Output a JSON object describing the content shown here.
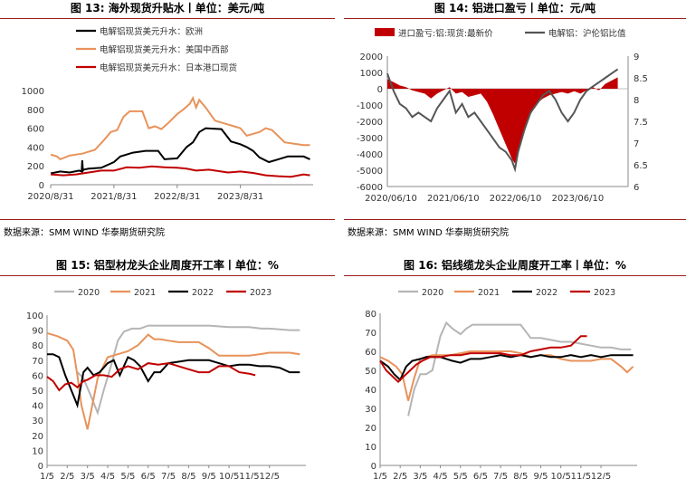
{
  "source_note": "数据来源：SMM WIND 华泰期货研究院",
  "colors": {
    "rule": "#9b1b1b",
    "black": "#000000",
    "orange": "#e8925a",
    "red": "#c00000",
    "gray": "#b5b5b5",
    "dgray": "#555555"
  },
  "chart_data": [
    {
      "id": "fig13",
      "title": "图 13: 海外现货升贴水丨单位：美元/吨",
      "type": "line",
      "x_ticks": [
        "2020/8/31",
        "2021/8/31",
        "2022/8/31",
        "2023/8/31"
      ],
      "y_ticks": [
        "0",
        "200",
        "400",
        "600",
        "800",
        "1000"
      ],
      "ylim": [
        0,
        1000
      ],
      "legend": "top-left",
      "series": [
        {
          "name": "电解铝现货美元升水：欧洲",
          "color": "#000000",
          "x": [
            0,
            0.15,
            0.3,
            0.45,
            0.49,
            0.5,
            0.51,
            0.52,
            0.6,
            0.8,
            1.0,
            1.1,
            1.2,
            1.3,
            1.5,
            1.7,
            1.8,
            2.0,
            2.15,
            2.25,
            2.35,
            2.45,
            2.7,
            2.85,
            3.0,
            3.1,
            3.2,
            3.3,
            3.45,
            3.6,
            3.7,
            3.75,
            4.0,
            4.1
          ],
          "y": [
            120,
            140,
            130,
            150,
            140,
            260,
            150,
            160,
            170,
            180,
            240,
            300,
            320,
            340,
            360,
            360,
            270,
            280,
            400,
            450,
            560,
            600,
            590,
            460,
            430,
            400,
            360,
            290,
            240,
            270,
            290,
            300,
            300,
            270
          ]
        },
        {
          "name": "电解铝现货美元升水：美国中西部",
          "color": "#e8925a",
          "x": [
            0,
            0.1,
            0.15,
            0.3,
            0.5,
            0.7,
            0.85,
            0.95,
            1.05,
            1.15,
            1.25,
            1.35,
            1.45,
            1.55,
            1.65,
            1.75,
            1.85,
            2.0,
            2.1,
            2.2,
            2.25,
            2.3,
            2.35,
            2.45,
            2.6,
            2.8,
            2.9,
            3.0,
            3.1,
            3.3,
            3.4,
            3.5,
            3.7,
            3.9,
            4.0,
            4.1
          ],
          "y": [
            320,
            300,
            270,
            310,
            330,
            370,
            480,
            560,
            580,
            720,
            780,
            780,
            780,
            600,
            620,
            590,
            650,
            750,
            800,
            860,
            920,
            820,
            900,
            820,
            680,
            640,
            620,
            600,
            520,
            560,
            600,
            580,
            450,
            430,
            420,
            420
          ]
        },
        {
          "name": "电解铝现货美元升水：日本港口现货",
          "color": "#c00000",
          "x": [
            0,
            0.2,
            0.4,
            0.6,
            0.8,
            1.0,
            1.2,
            1.4,
            1.6,
            1.8,
            2.0,
            2.15,
            2.3,
            2.5,
            2.6,
            2.8,
            3.0,
            3.2,
            3.4,
            3.6,
            3.8,
            4.0,
            4.1
          ],
          "y": [
            110,
            100,
            110,
            130,
            150,
            150,
            185,
            180,
            195,
            185,
            180,
            170,
            150,
            160,
            150,
            130,
            140,
            125,
            100,
            90,
            85,
            110,
            100
          ]
        }
      ]
    },
    {
      "id": "fig14",
      "title": "图 14: 铝进口盈亏丨单位：元/吨",
      "type": "bar",
      "x_ticks": [
        "2020/06/10",
        "2021/06/10",
        "2022/06/10",
        "2023/06/10"
      ],
      "y_ticks": [
        "-6000",
        "-5000",
        "-4000",
        "-3000",
        "-2000",
        "-1000",
        "0",
        "1000",
        "2000"
      ],
      "y2_ticks": [
        "6",
        "6.5",
        "7",
        "7.5",
        "8",
        "8.5",
        "9"
      ],
      "ylim": [
        -6000,
        2000
      ],
      "y2lim": [
        6,
        9
      ],
      "legend": "top",
      "series": [
        {
          "name": "进口盈亏:铝:现货:最新价",
          "color": "#c00000",
          "axis": "left",
          "x": [
            0,
            0.1,
            0.2,
            0.3,
            0.4,
            0.5,
            0.6,
            0.7,
            0.8,
            0.9,
            1.0,
            1.1,
            1.2,
            1.3,
            1.4,
            1.5,
            1.6,
            1.7,
            1.8,
            1.9,
            2.0,
            2.05,
            2.1,
            2.2,
            2.3,
            2.4,
            2.5,
            2.6,
            2.7,
            2.8,
            2.9,
            3.0,
            3.1,
            3.2,
            3.3,
            3.4,
            3.5,
            3.6,
            3.7
          ],
          "y": [
            600,
            400,
            200,
            100,
            -100,
            -200,
            -300,
            -600,
            -300,
            -100,
            100,
            -300,
            -200,
            -500,
            -400,
            -300,
            -800,
            -1600,
            -2500,
            -3400,
            -4300,
            -4600,
            -3800,
            -2600,
            -1600,
            -900,
            -600,
            -400,
            -300,
            -200,
            -300,
            -150,
            -300,
            -100,
            100,
            -100,
            300,
            500,
            700
          ]
        },
        {
          "name": "电解铝：沪伦铝比值",
          "color": "#555555",
          "axis": "right",
          "x": [
            0,
            0.1,
            0.2,
            0.3,
            0.4,
            0.5,
            0.6,
            0.7,
            0.8,
            0.9,
            1.0,
            1.1,
            1.2,
            1.3,
            1.4,
            1.5,
            1.6,
            1.7,
            1.8,
            1.9,
            2.0,
            2.05,
            2.1,
            2.2,
            2.3,
            2.4,
            2.5,
            2.6,
            2.7,
            2.8,
            2.9,
            3.0,
            3.1,
            3.2,
            3.3,
            3.4,
            3.5,
            3.6,
            3.7
          ],
          "y": [
            8.6,
            8.2,
            7.9,
            7.8,
            7.6,
            7.7,
            7.6,
            7.5,
            7.8,
            8.0,
            8.2,
            7.7,
            7.9,
            7.6,
            7.7,
            7.5,
            7.3,
            7.1,
            6.9,
            6.8,
            6.6,
            6.4,
            6.8,
            7.3,
            7.7,
            7.9,
            8.1,
            8.2,
            8.0,
            7.7,
            7.5,
            7.7,
            8.0,
            8.2,
            8.3,
            8.4,
            8.5,
            8.6,
            8.7
          ]
        }
      ]
    },
    {
      "id": "fig15",
      "title": "图 15: 铝型材龙头企业周度开工率丨单位：%",
      "type": "line",
      "x_ticks": [
        "1/5",
        "2/5",
        "3/5",
        "4/5",
        "5/5",
        "6/5",
        "7/5",
        "8/5",
        "9/5",
        "10/5",
        "11/5",
        "12/5"
      ],
      "y_ticks": [
        "0",
        "10",
        "20",
        "30",
        "40",
        "50",
        "60",
        "70",
        "80",
        "90",
        "100"
      ],
      "ylim": [
        0,
        100
      ],
      "legend": "top",
      "series": [
        {
          "name": "2020",
          "color": "#b5b5b5",
          "x": [
            1.5,
            1.8,
            2.2,
            2.5,
            2.8,
            3.2,
            3.5,
            3.8,
            4.2,
            4.6,
            5.0,
            6.0,
            7.0,
            8.0,
            9.0,
            10.0,
            10.6,
            11.0,
            12.0,
            12.5
          ],
          "y": [
            62,
            58,
            45,
            35,
            50,
            68,
            83,
            89,
            91,
            91,
            93,
            93,
            93,
            93,
            92,
            92,
            91,
            91,
            90,
            90
          ]
        },
        {
          "name": "2021",
          "color": "#e8925a",
          "x": [
            0.0,
            0.5,
            1.0,
            1.3,
            1.5,
            1.7,
            2.0,
            2.5,
            3.0,
            3.5,
            4.0,
            4.5,
            5.0,
            5.3,
            5.6,
            6.0,
            6.5,
            7.0,
            7.5,
            8.0,
            8.5,
            9.0,
            9.5,
            10.0,
            10.5,
            11.0,
            11.5,
            12.0,
            12.5
          ],
          "y": [
            88,
            86,
            83,
            77,
            60,
            40,
            24,
            58,
            72,
            74,
            76,
            80,
            87,
            84,
            84,
            83,
            82,
            82,
            82,
            78,
            73,
            73,
            73,
            73,
            74,
            75,
            75,
            75,
            74
          ]
        },
        {
          "name": "2022",
          "color": "#000000",
          "x": [
            0.0,
            0.3,
            0.6,
            0.9,
            1.2,
            1.5,
            1.8,
            2.0,
            2.3,
            2.6,
            3.0,
            3.3,
            3.6,
            4.0,
            4.3,
            4.6,
            5.0,
            5.3,
            5.6,
            6.0,
            6.5,
            7.0,
            7.5,
            8.0,
            8.5,
            9.0,
            9.5,
            10.0,
            10.5,
            11.0,
            11.5,
            12.0,
            12.5
          ],
          "y": [
            74,
            74,
            72,
            60,
            50,
            40,
            62,
            65,
            60,
            62,
            68,
            70,
            60,
            72,
            70,
            66,
            56,
            62,
            62,
            68,
            69,
            70,
            70,
            70,
            68,
            66,
            67,
            67,
            66,
            66,
            65,
            62,
            62
          ]
        },
        {
          "name": "2023",
          "color": "#c00000",
          "x": [
            0.0,
            0.3,
            0.6,
            0.9,
            1.2,
            1.5,
            1.8,
            2.0,
            2.4,
            2.8,
            3.2,
            3.6,
            4.0,
            4.5,
            5.0,
            5.5,
            6.0,
            6.5,
            7.0,
            7.5,
            8.0,
            8.5,
            9.0,
            9.5,
            10.0,
            10.3
          ],
          "y": [
            59,
            56,
            50,
            54,
            55,
            52,
            56,
            57,
            60,
            60,
            59,
            64,
            66,
            64,
            68,
            67,
            68,
            66,
            64,
            62,
            62,
            66,
            66,
            62,
            61,
            60
          ]
        }
      ]
    },
    {
      "id": "fig16",
      "title": "图 16: 铝线缆龙头企业周度开工率丨单位：%",
      "type": "line",
      "x_ticks": [
        "1/5",
        "2/5",
        "3/5",
        "4/5",
        "5/5",
        "6/5",
        "7/5",
        "8/5",
        "9/5",
        "10/5",
        "11/5",
        "12/5"
      ],
      "y_ticks": [
        "0",
        "10",
        "20",
        "30",
        "40",
        "50",
        "60",
        "70",
        "80"
      ],
      "ylim": [
        0,
        80
      ],
      "legend": "top",
      "series": [
        {
          "name": "2020",
          "color": "#b5b5b5",
          "x": [
            1.4,
            1.7,
            2.0,
            2.3,
            2.6,
            3.0,
            3.3,
            3.6,
            4.0,
            4.3,
            4.6,
            5.0,
            5.5,
            6.0,
            6.5,
            7.0,
            7.5,
            8.0,
            8.5,
            9.0,
            9.5,
            10.0,
            10.5,
            11.0,
            11.5,
            12.0,
            12.5
          ],
          "y": [
            26,
            40,
            48,
            48,
            50,
            68,
            75,
            72,
            69,
            72,
            74,
            74,
            74,
            74,
            74,
            74,
            67,
            67,
            66,
            65,
            65,
            64,
            63,
            62,
            62,
            61,
            61
          ]
        },
        {
          "name": "2021",
          "color": "#e8925a",
          "x": [
            0.0,
            0.4,
            0.8,
            1.1,
            1.4,
            1.7,
            2.0,
            2.3,
            2.6,
            3.0,
            3.5,
            4.0,
            4.5,
            5.0,
            5.5,
            6.0,
            6.5,
            7.0,
            7.5,
            8.0,
            8.5,
            9.0,
            9.5,
            10.0,
            10.5,
            11.0,
            11.5,
            12.0,
            12.3,
            12.6
          ],
          "y": [
            57,
            55,
            52,
            48,
            34,
            46,
            56,
            57,
            58,
            58,
            58,
            59,
            60,
            60,
            60,
            60,
            60,
            59,
            57,
            58,
            58,
            56,
            55,
            55,
            55,
            56,
            56,
            52,
            49,
            52
          ]
        },
        {
          "name": "2022",
          "color": "#000000",
          "x": [
            0.0,
            0.4,
            0.7,
            1.0,
            1.3,
            1.6,
            2.0,
            2.3,
            2.6,
            3.0,
            3.3,
            3.6,
            4.0,
            4.5,
            5.0,
            5.5,
            6.0,
            6.5,
            7.0,
            7.5,
            8.0,
            8.5,
            9.0,
            9.5,
            10.0,
            10.5,
            11.0,
            11.5,
            12.0,
            12.6
          ],
          "y": [
            55,
            52,
            48,
            45,
            52,
            55,
            56,
            57,
            57,
            57,
            56,
            55,
            54,
            56,
            56,
            57,
            58,
            57,
            58,
            57,
            58,
            57,
            57,
            58,
            57,
            58,
            57,
            58,
            58,
            58
          ]
        },
        {
          "name": "2023",
          "color": "#c00000",
          "x": [
            0.0,
            0.3,
            0.6,
            0.9,
            1.2,
            1.5,
            1.8,
            2.1,
            2.5,
            3.0,
            3.5,
            4.0,
            4.5,
            5.0,
            5.5,
            6.0,
            6.5,
            7.0,
            7.5,
            8.0,
            8.5,
            9.0,
            9.5,
            10.0,
            10.3
          ],
          "y": [
            55,
            50,
            47,
            44,
            47,
            50,
            53,
            55,
            57,
            57,
            58,
            58,
            59,
            59,
            59,
            59,
            58,
            58,
            60,
            61,
            62,
            62,
            63,
            68,
            68
          ]
        }
      ]
    }
  ]
}
